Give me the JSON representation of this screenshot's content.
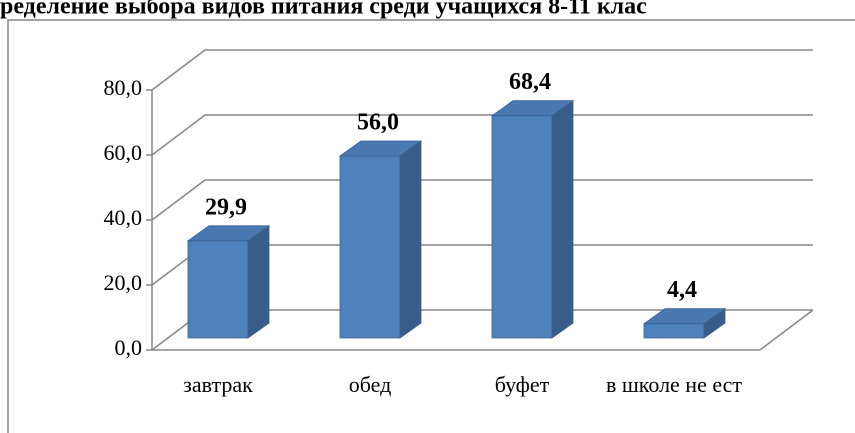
{
  "chart_data": {
    "type": "bar3d",
    "title": "ределение выбора видов питания среди учащихся 8-11 клас",
    "categories": [
      "завтрак",
      "обед",
      "буфет",
      "в школе не ест"
    ],
    "values": [
      29.9,
      56.0,
      68.4,
      4.4
    ],
    "value_labels": [
      "29,9",
      "56,0",
      "68,4",
      "4,4"
    ],
    "color": "#4f81bd",
    "ylim": [
      0,
      80
    ],
    "yticks": [
      {
        "value": 0,
        "label": "0,0"
      },
      {
        "value": 20,
        "label": "20,0"
      },
      {
        "value": 40,
        "label": "40,0"
      },
      {
        "value": 60,
        "label": "60,0"
      },
      {
        "value": 80,
        "label": "80,0"
      }
    ],
    "grid": true
  }
}
